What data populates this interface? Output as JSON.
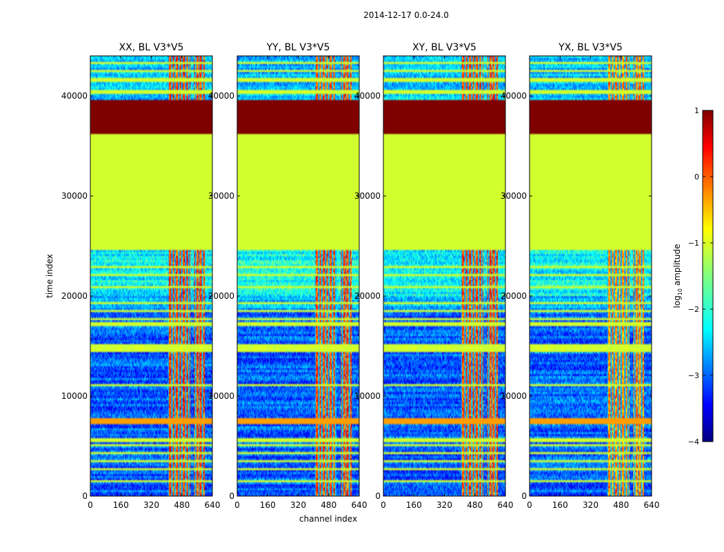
{
  "chart_data": {
    "type": "heatmap",
    "title": "2014-12-17 0.0-24.0",
    "xlabel": "channel index",
    "ylabel": "time index",
    "xlim": [
      0,
      640
    ],
    "ylim": [
      0,
      44000
    ],
    "xticks": [
      0,
      160,
      320,
      480,
      640
    ],
    "yticks": [
      0,
      10000,
      20000,
      30000,
      40000
    ],
    "panels": [
      {
        "name": "XX, BL V3*V5",
        "signal_bands": [
          [
            410,
            525
          ],
          [
            545,
            600
          ]
        ],
        "band_level": 0.35
      },
      {
        "name": "YY, BL V3*V5",
        "signal_bands": [
          [
            410,
            520
          ],
          [
            545,
            600
          ]
        ],
        "band_level": 0.3
      },
      {
        "name": "XY, BL V3*V5",
        "signal_bands": [
          [
            410,
            525
          ],
          [
            545,
            600
          ]
        ],
        "band_level": 0.3
      },
      {
        "name": "YX, BL V3*V5",
        "signal_bands": [
          [
            410,
            525
          ],
          [
            545,
            600
          ]
        ],
        "band_level": 0.0
      }
    ],
    "row_segments": [
      {
        "t0": 0,
        "t1": 7300,
        "kind": "noise",
        "level": -2.9
      },
      {
        "t0": 7300,
        "t1": 7900,
        "kind": "solid",
        "level": -0.4
      },
      {
        "t0": 7900,
        "t1": 18500,
        "kind": "noise",
        "level": -2.9
      },
      {
        "t0": 18500,
        "t1": 20000,
        "kind": "noise",
        "level": -2.5
      },
      {
        "t0": 20000,
        "t1": 24700,
        "kind": "noise",
        "level": -2.1
      },
      {
        "t0": 24700,
        "t1": 36300,
        "kind": "solid",
        "level": -1.1
      },
      {
        "t0": 36300,
        "t1": 39600,
        "kind": "solid",
        "level": 1.0
      },
      {
        "t0": 39600,
        "t1": 44000,
        "kind": "noise",
        "level": -2.4
      }
    ],
    "flag_lines": [
      1500,
      2700,
      3500,
      4300,
      5100,
      5600,
      11100,
      14600,
      15000,
      17200,
      17700,
      18500,
      19300,
      20900,
      22100,
      22900,
      37000,
      40400,
      41600,
      42500,
      43300
    ],
    "colorbar": {
      "label": "log10 amplitude",
      "label_base": "log",
      "label_sub": "10",
      "label_rest": " amplitude",
      "range": [
        -4,
        1
      ],
      "ticks": [
        "1",
        "0",
        "−1",
        "−2",
        "−3",
        "−4"
      ],
      "colormap": "jet"
    }
  }
}
